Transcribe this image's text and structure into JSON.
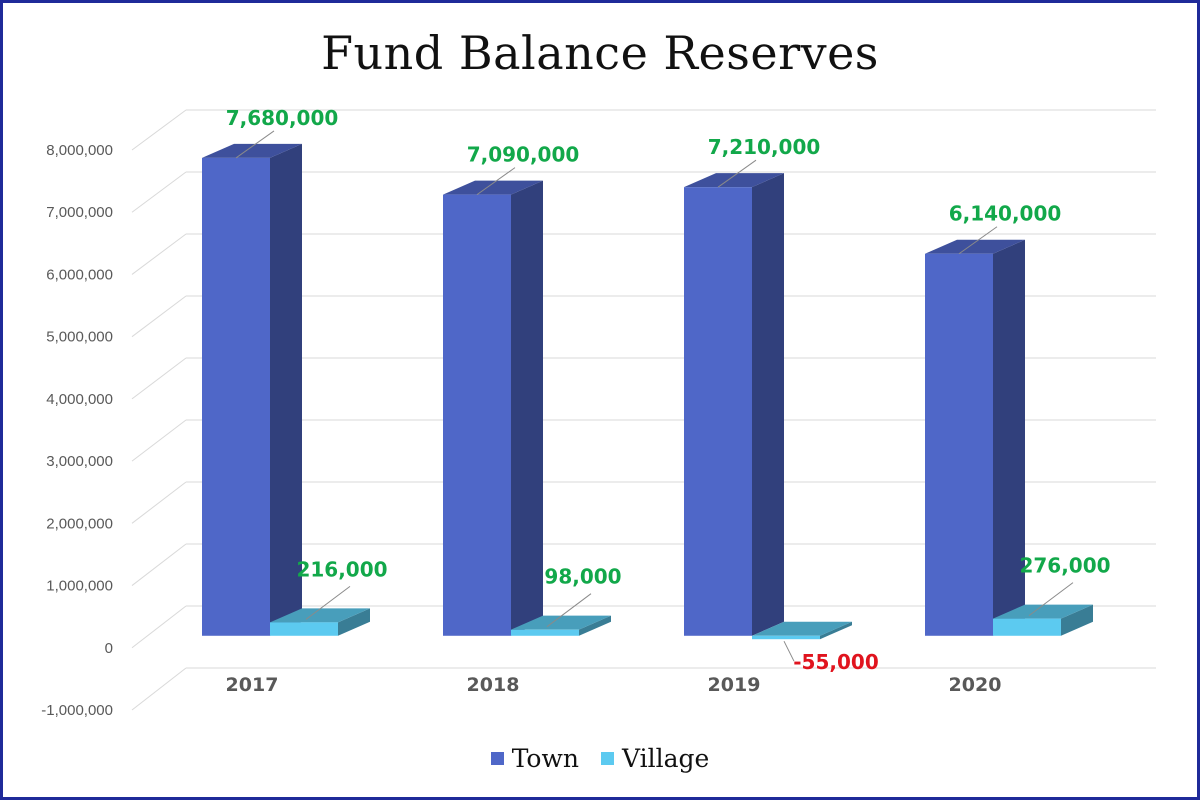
{
  "chart_data": {
    "type": "bar",
    "title": "Fund Balance Reserves",
    "categories": [
      "2017",
      "2018",
      "2019",
      "2020"
    ],
    "series": [
      {
        "name": "Town",
        "values": [
          7680000,
          7090000,
          7210000,
          6140000
        ],
        "labels": [
          "7,680,000",
          "7,090,000",
          "7,210,000",
          "6,140,000"
        ],
        "color": "#4f67c8"
      },
      {
        "name": "Village",
        "values": [
          216000,
          98000,
          -55000,
          276000
        ],
        "labels": [
          "216,000",
          "98,000",
          "-55,000",
          "276,000"
        ],
        "color": "#5ccaf0"
      }
    ],
    "yticks": [
      "8,000,000",
      "7,000,000",
      "6,000,000",
      "5,000,000",
      "4,000,000",
      "3,000,000",
      "2,000,000",
      "1,000,000",
      "0",
      "-1,000,000"
    ],
    "ylim": [
      -1000000,
      8000000
    ],
    "positive_label_color": "#12a84a",
    "negative_label_color": "#e0141e",
    "grid": true,
    "legend_position": "bottom",
    "border_color": "#1f2a99"
  }
}
